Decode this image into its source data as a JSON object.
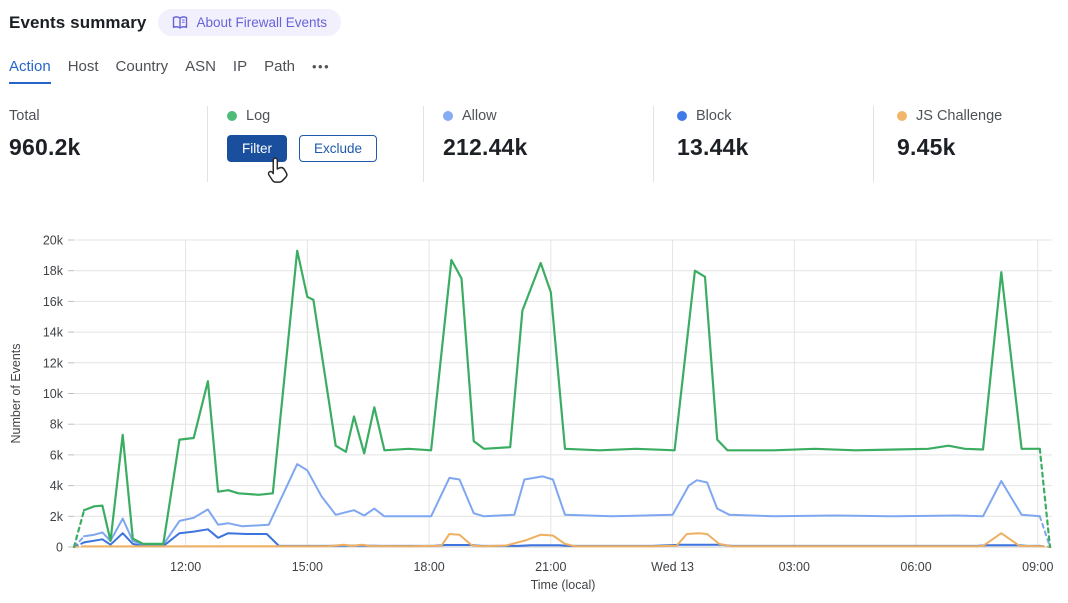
{
  "header": {
    "title": "Events summary",
    "badge_label": "About Firewall Events"
  },
  "tabs": {
    "items": [
      {
        "label": "Action",
        "active": true
      },
      {
        "label": "Host",
        "active": false
      },
      {
        "label": "Country",
        "active": false
      },
      {
        "label": "ASN",
        "active": false
      },
      {
        "label": "IP",
        "active": false
      },
      {
        "label": "Path",
        "active": false
      }
    ],
    "more_label": "•••"
  },
  "stats": [
    {
      "label": "Total",
      "value": "960.2k"
    },
    {
      "label": "Log",
      "dot_color": "#4DBC79",
      "buttons": [
        {
          "label": "Filter"
        },
        {
          "label": "Exclude"
        }
      ]
    },
    {
      "label": "Allow",
      "dot_color": "#86ADF3",
      "value": "212.44k"
    },
    {
      "label": "Block",
      "dot_color": "#3F7BE8",
      "value": "13.44k"
    },
    {
      "label": "JS Challenge",
      "dot_color": "#F2B669",
      "value": "9.45k"
    }
  ],
  "colors": {
    "tab_active": "#2565C7",
    "primary_button_bg": "#1A4F9E",
    "outline_button": "#1F5AAB",
    "badge_bg": "#F1F0FC",
    "badge_text": "#6763D8",
    "grid": "#e4e4e4",
    "zero_line": "#c9c9c9",
    "tick_text": "#3f4347"
  },
  "chart_data": {
    "type": "line",
    "title": "",
    "xlabel": "Time (local)",
    "ylabel": "Number of Events",
    "x_range": [
      9.25,
      33.35
    ],
    "y_range": [
      0,
      20
    ],
    "y_unit": "k",
    "grid": true,
    "legend_position": "none (stats row above acts as legend)",
    "x_ticks": [
      {
        "t": 12,
        "label": "12:00"
      },
      {
        "t": 15,
        "label": "15:00"
      },
      {
        "t": 18,
        "label": "18:00"
      },
      {
        "t": 21,
        "label": "21:00"
      },
      {
        "t": 24,
        "label": "Wed 13"
      },
      {
        "t": 27,
        "label": "03:00"
      },
      {
        "t": 30,
        "label": "06:00"
      },
      {
        "t": 33,
        "label": "09:00"
      }
    ],
    "y_ticks": [
      {
        "v": 0,
        "label": "0"
      },
      {
        "v": 2,
        "label": "2k"
      },
      {
        "v": 4,
        "label": "4k"
      },
      {
        "v": 6,
        "label": "6k"
      },
      {
        "v": 8,
        "label": "8k"
      },
      {
        "v": 10,
        "label": "10k"
      },
      {
        "v": 12,
        "label": "12k"
      },
      {
        "v": 14,
        "label": "14k"
      },
      {
        "v": 16,
        "label": "16k"
      },
      {
        "v": 18,
        "label": "18k"
      },
      {
        "v": 20,
        "label": "20k"
      }
    ],
    "series": [
      {
        "name": "Allow",
        "color": "#7FA7F0",
        "width": 2,
        "head_dash": [
          [
            9.25,
            0
          ],
          [
            9.5,
            0.7
          ]
        ],
        "solid": [
          [
            9.5,
            0.7
          ],
          [
            9.75,
            0.8
          ],
          [
            9.95,
            0.95
          ],
          [
            10.15,
            0.4
          ],
          [
            10.45,
            1.85
          ],
          [
            10.7,
            0.4
          ],
          [
            10.95,
            0.15
          ],
          [
            11.45,
            0.15
          ],
          [
            11.85,
            1.7
          ],
          [
            12.2,
            1.9
          ],
          [
            12.55,
            2.45
          ],
          [
            12.8,
            1.45
          ],
          [
            13.05,
            1.55
          ],
          [
            13.4,
            1.35
          ],
          [
            14.05,
            1.45
          ],
          [
            14.75,
            5.4
          ],
          [
            15.0,
            5.0
          ],
          [
            15.35,
            3.3
          ],
          [
            15.7,
            2.1
          ],
          [
            16.15,
            2.4
          ],
          [
            16.4,
            2.05
          ],
          [
            16.65,
            2.5
          ],
          [
            16.9,
            2.0
          ],
          [
            18.05,
            2.0
          ],
          [
            18.5,
            4.5
          ],
          [
            18.75,
            4.4
          ],
          [
            19.1,
            2.2
          ],
          [
            19.35,
            2.0
          ],
          [
            20.1,
            2.1
          ],
          [
            20.35,
            4.4
          ],
          [
            20.8,
            4.6
          ],
          [
            21.05,
            4.4
          ],
          [
            21.35,
            2.1
          ],
          [
            22.5,
            2.0
          ],
          [
            24.0,
            2.1
          ],
          [
            24.4,
            4.0
          ],
          [
            24.6,
            4.35
          ],
          [
            24.85,
            4.2
          ],
          [
            25.1,
            2.5
          ],
          [
            25.4,
            2.1
          ],
          [
            26.5,
            2.0
          ],
          [
            28.0,
            2.05
          ],
          [
            29.5,
            2.0
          ],
          [
            31.0,
            2.05
          ],
          [
            31.65,
            2.0
          ],
          [
            32.1,
            4.3
          ],
          [
            32.6,
            2.1
          ],
          [
            33.05,
            2.0
          ]
        ],
        "tail_dash": [
          [
            33.05,
            2.0
          ],
          [
            33.3,
            0
          ]
        ]
      },
      {
        "name": "Block",
        "color": "#3D74DE",
        "width": 2,
        "head_dash": [
          [
            9.25,
            0
          ],
          [
            9.5,
            0.3
          ]
        ],
        "solid": [
          [
            9.5,
            0.3
          ],
          [
            9.95,
            0.5
          ],
          [
            10.15,
            0.15
          ],
          [
            10.45,
            0.9
          ],
          [
            10.7,
            0.2
          ],
          [
            10.95,
            0.06
          ],
          [
            11.45,
            0.06
          ],
          [
            11.85,
            0.9
          ],
          [
            12.2,
            1.0
          ],
          [
            12.55,
            1.15
          ],
          [
            12.8,
            0.6
          ],
          [
            13.05,
            0.9
          ],
          [
            13.5,
            0.85
          ],
          [
            14.0,
            0.85
          ],
          [
            14.3,
            0.07
          ],
          [
            15.5,
            0.07
          ],
          [
            16.15,
            0.1
          ],
          [
            17.0,
            0.07
          ],
          [
            18.1,
            0.07
          ],
          [
            18.4,
            0.13
          ],
          [
            19.05,
            0.13
          ],
          [
            19.3,
            0.07
          ],
          [
            20.2,
            0.07
          ],
          [
            20.5,
            0.12
          ],
          [
            21.2,
            0.12
          ],
          [
            21.45,
            0.07
          ],
          [
            23.5,
            0.07
          ],
          [
            24.2,
            0.15
          ],
          [
            25.2,
            0.15
          ],
          [
            25.45,
            0.07
          ],
          [
            27.0,
            0.07
          ],
          [
            29.0,
            0.07
          ],
          [
            31.5,
            0.07
          ],
          [
            31.75,
            0.12
          ],
          [
            32.5,
            0.12
          ],
          [
            32.75,
            0.07
          ],
          [
            33.05,
            0.07
          ]
        ],
        "tail_dash": [
          [
            33.05,
            0.07
          ],
          [
            33.3,
            0
          ]
        ]
      },
      {
        "name": "JS Challenge",
        "color": "#EFB062",
        "width": 2,
        "head_dash": [
          [
            9.25,
            0
          ],
          [
            9.5,
            0.04
          ]
        ],
        "solid": [
          [
            9.5,
            0.04
          ],
          [
            11.0,
            0.04
          ],
          [
            13.0,
            0.05
          ],
          [
            15.5,
            0.05
          ],
          [
            15.9,
            0.15
          ],
          [
            16.1,
            0.08
          ],
          [
            16.35,
            0.15
          ],
          [
            16.6,
            0.06
          ],
          [
            17.5,
            0.05
          ],
          [
            18.3,
            0.08
          ],
          [
            18.5,
            0.85
          ],
          [
            18.75,
            0.8
          ],
          [
            19.05,
            0.12
          ],
          [
            19.3,
            0.05
          ],
          [
            19.9,
            0.1
          ],
          [
            20.4,
            0.45
          ],
          [
            20.75,
            0.8
          ],
          [
            21.05,
            0.75
          ],
          [
            21.35,
            0.2
          ],
          [
            21.6,
            0.05
          ],
          [
            23.5,
            0.05
          ],
          [
            24.1,
            0.08
          ],
          [
            24.35,
            0.85
          ],
          [
            24.65,
            0.9
          ],
          [
            24.85,
            0.85
          ],
          [
            25.15,
            0.2
          ],
          [
            25.45,
            0.05
          ],
          [
            27.0,
            0.05
          ],
          [
            29.0,
            0.05
          ],
          [
            31.5,
            0.05
          ],
          [
            31.65,
            0.07
          ],
          [
            32.1,
            0.9
          ],
          [
            32.55,
            0.07
          ],
          [
            33.05,
            0.05
          ]
        ],
        "tail_dash": [
          [
            33.05,
            0.05
          ],
          [
            33.3,
            0
          ]
        ]
      },
      {
        "name": "Log",
        "color": "#3BAD63",
        "width": 2.2,
        "head_dash": [
          [
            9.25,
            0
          ],
          [
            9.5,
            2.4
          ]
        ],
        "solid": [
          [
            9.5,
            2.4
          ],
          [
            9.75,
            2.65
          ],
          [
            9.95,
            2.7
          ],
          [
            10.15,
            0.4
          ],
          [
            10.45,
            7.3
          ],
          [
            10.7,
            0.55
          ],
          [
            10.95,
            0.2
          ],
          [
            11.45,
            0.2
          ],
          [
            11.85,
            7.0
          ],
          [
            12.2,
            7.1
          ],
          [
            12.55,
            10.8
          ],
          [
            12.8,
            3.6
          ],
          [
            13.05,
            3.7
          ],
          [
            13.3,
            3.5
          ],
          [
            13.8,
            3.4
          ],
          [
            14.15,
            3.5
          ],
          [
            14.75,
            19.3
          ],
          [
            15.0,
            16.3
          ],
          [
            15.15,
            16.1
          ],
          [
            15.7,
            6.6
          ],
          [
            15.95,
            6.2
          ],
          [
            16.15,
            8.5
          ],
          [
            16.4,
            6.1
          ],
          [
            16.65,
            9.1
          ],
          [
            16.9,
            6.3
          ],
          [
            17.5,
            6.4
          ],
          [
            18.05,
            6.3
          ],
          [
            18.55,
            18.7
          ],
          [
            18.8,
            17.5
          ],
          [
            19.1,
            6.9
          ],
          [
            19.35,
            6.4
          ],
          [
            20.0,
            6.5
          ],
          [
            20.3,
            15.4
          ],
          [
            20.75,
            18.5
          ],
          [
            21.0,
            16.6
          ],
          [
            21.35,
            6.4
          ],
          [
            22.2,
            6.3
          ],
          [
            23.1,
            6.4
          ],
          [
            24.05,
            6.3
          ],
          [
            24.55,
            18.0
          ],
          [
            24.8,
            17.6
          ],
          [
            25.1,
            7.0
          ],
          [
            25.35,
            6.3
          ],
          [
            26.5,
            6.3
          ],
          [
            27.5,
            6.4
          ],
          [
            28.5,
            6.3
          ],
          [
            29.5,
            6.35
          ],
          [
            30.3,
            6.4
          ],
          [
            30.8,
            6.6
          ],
          [
            31.2,
            6.4
          ],
          [
            31.65,
            6.35
          ],
          [
            32.1,
            17.9
          ],
          [
            32.6,
            6.4
          ],
          [
            33.05,
            6.4
          ]
        ],
        "tail_dash": [
          [
            33.05,
            6.4
          ],
          [
            33.3,
            0
          ]
        ]
      }
    ]
  }
}
